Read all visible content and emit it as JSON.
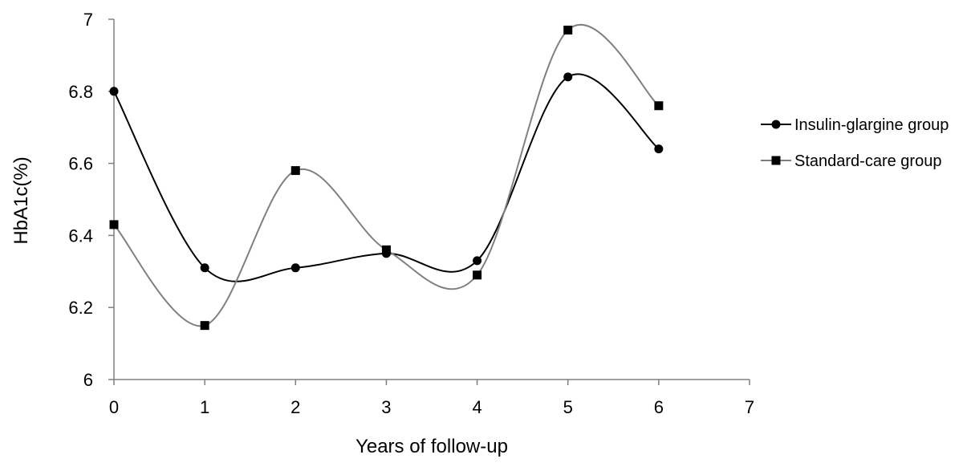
{
  "chart_data": {
    "type": "line",
    "title": "",
    "xlabel": "Years of follow-up",
    "ylabel": "HbA1c(%)",
    "xlim": [
      0,
      7
    ],
    "ylim": [
      6,
      7
    ],
    "x_ticks": [
      "0",
      "1",
      "2",
      "3",
      "4",
      "5",
      "6",
      "7"
    ],
    "y_ticks": [
      "6",
      "6.2",
      "6.4",
      "6.6",
      "6.8",
      "7"
    ],
    "grid": false,
    "smooth": true,
    "legend_position": "right",
    "x": [
      0,
      1,
      2,
      3,
      4,
      5,
      6
    ],
    "series": [
      {
        "name": "Insulin-glargine group",
        "values": [
          6.8,
          6.31,
          6.31,
          6.35,
          6.33,
          6.84,
          6.64
        ],
        "color": "#000000",
        "marker": "circle"
      },
      {
        "name": "Standard-care group",
        "values": [
          6.43,
          6.15,
          6.58,
          6.36,
          6.29,
          6.97,
          6.76
        ],
        "color": "#808080",
        "marker": "square"
      }
    ]
  }
}
